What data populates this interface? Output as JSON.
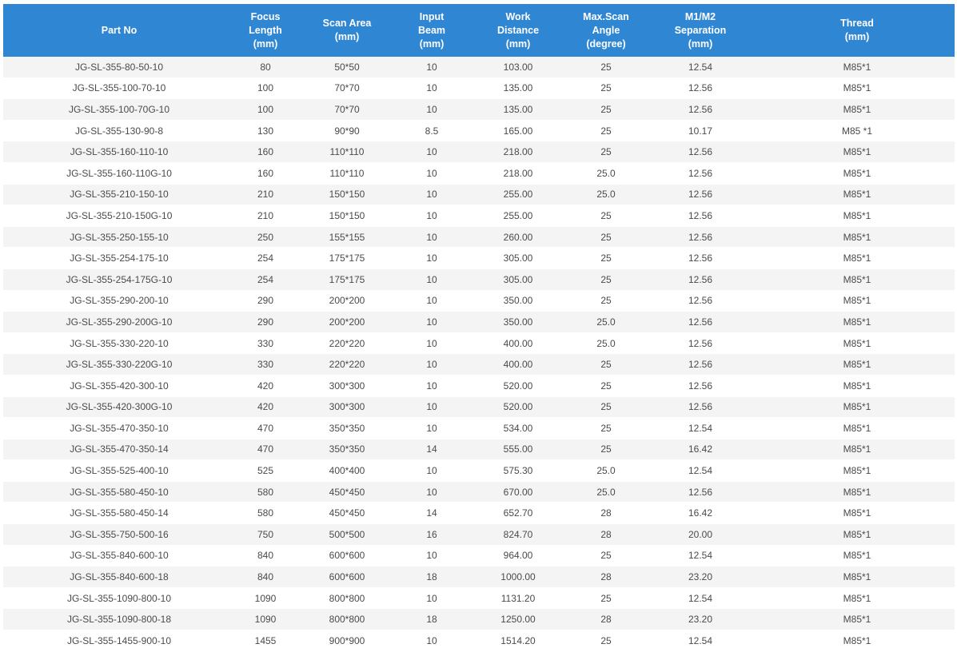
{
  "table": {
    "headers": [
      [
        "Part No"
      ],
      [
        "Focus",
        "Length",
        "(mm)"
      ],
      [
        "Scan Area",
        "(mm)"
      ],
      [
        "Input",
        "Beam",
        "(mm)"
      ],
      [
        "Work",
        "Distance",
        "(mm)"
      ],
      [
        "Max.Scan",
        "Angle",
        "(degree)"
      ],
      [
        "M1/M2",
        "Separation",
        "(mm)"
      ],
      [
        "Thread",
        "(mm)"
      ]
    ],
    "rows": [
      [
        "JG-SL-355-80-50-10",
        "80",
        "50*50",
        "10",
        "103.00",
        "25",
        "12.54",
        "M85*1"
      ],
      [
        "JG-SL-355-100-70-10",
        "100",
        "70*70",
        "10",
        "135.00",
        "25",
        "12.56",
        "M85*1"
      ],
      [
        "JG-SL-355-100-70G-10",
        "100",
        "70*70",
        "10",
        "135.00",
        "25",
        "12.56",
        "M85*1"
      ],
      [
        "JG-SL-355-130-90-8",
        "130",
        "90*90",
        "8.5",
        "165.00",
        "25",
        "10.17",
        "M85 *1"
      ],
      [
        "JG-SL-355-160-110-10",
        "160",
        "110*110",
        "10",
        "218.00",
        "25",
        "12.56",
        "M85*1"
      ],
      [
        "JG-SL-355-160-110G-10",
        "160",
        "110*110",
        "10",
        "218.00",
        "25.0",
        "12.56",
        "M85*1"
      ],
      [
        "JG-SL-355-210-150-10",
        "210",
        "150*150",
        "10",
        "255.00",
        "25.0",
        "12.56",
        "M85*1"
      ],
      [
        "JG-SL-355-210-150G-10",
        "210",
        "150*150",
        "10",
        "255.00",
        "25",
        "12.56",
        "M85*1"
      ],
      [
        "JG-SL-355-250-155-10",
        "250",
        "155*155",
        "10",
        "260.00",
        "25",
        "12.56",
        "M85*1"
      ],
      [
        "JG-SL-355-254-175-10",
        "254",
        "175*175",
        "10",
        "305.00",
        "25",
        "12.56",
        "M85*1"
      ],
      [
        "JG-SL-355-254-175G-10",
        "254",
        "175*175",
        "10",
        "305.00",
        "25",
        "12.56",
        "M85*1"
      ],
      [
        "JG-SL-355-290-200-10",
        "290",
        "200*200",
        "10",
        "350.00",
        "25",
        "12.56",
        "M85*1"
      ],
      [
        "JG-SL-355-290-200G-10",
        "290",
        "200*200",
        "10",
        "350.00",
        "25.0",
        "12.56",
        "M85*1"
      ],
      [
        "JG-SL-355-330-220-10",
        "330",
        "220*220",
        "10",
        "400.00",
        "25.0",
        "12.56",
        "M85*1"
      ],
      [
        "JG-SL-355-330-220G-10",
        "330",
        "220*220",
        "10",
        "400.00",
        "25",
        "12.56",
        "M85*1"
      ],
      [
        "JG-SL-355-420-300-10",
        "420",
        "300*300",
        "10",
        "520.00",
        "25",
        "12.56",
        "M85*1"
      ],
      [
        "JG-SL-355-420-300G-10",
        "420",
        "300*300",
        "10",
        "520.00",
        "25",
        "12.56",
        "M85*1"
      ],
      [
        "JG-SL-355-470-350-10",
        "470",
        "350*350",
        "10",
        "534.00",
        "25",
        "12.54",
        "M85*1"
      ],
      [
        "JG-SL-355-470-350-14",
        "470",
        "350*350",
        "14",
        "555.00",
        "25",
        "16.42",
        "M85*1"
      ],
      [
        "JG-SL-355-525-400-10",
        "525",
        "400*400",
        "10",
        "575.30",
        "25.0",
        "12.54",
        "M85*1"
      ],
      [
        "JG-SL-355-580-450-10",
        "580",
        "450*450",
        "10",
        "670.00",
        "25.0",
        "12.56",
        "M85*1"
      ],
      [
        "JG-SL-355-580-450-14",
        "580",
        "450*450",
        "14",
        "652.70",
        "28",
        "16.42",
        "M85*1"
      ],
      [
        "JG-SL-355-750-500-16",
        "750",
        "500*500",
        "16",
        "824.70",
        "28",
        "20.00",
        "M85*1"
      ],
      [
        "JG-SL-355-840-600-10",
        "840",
        "600*600",
        "10",
        "964.00",
        "25",
        "12.54",
        "M85*1"
      ],
      [
        "JG-SL-355-840-600-18",
        "840",
        "600*600",
        "18",
        "1000.00",
        "28",
        "23.20",
        "M85*1"
      ],
      [
        "JG-SL-355-1090-800-10",
        "1090",
        "800*800",
        "10",
        "1131.20",
        "25",
        "12.54",
        "M85*1"
      ],
      [
        "JG-SL-355-1090-800-18",
        "1090",
        "800*800",
        "18",
        "1250.00",
        "28",
        "23.20",
        "M85*1"
      ],
      [
        "JG-SL-355-1455-900-10",
        "1455",
        "900*900",
        "10",
        "1514.20",
        "25",
        "12.54",
        "M85*1"
      ]
    ]
  }
}
